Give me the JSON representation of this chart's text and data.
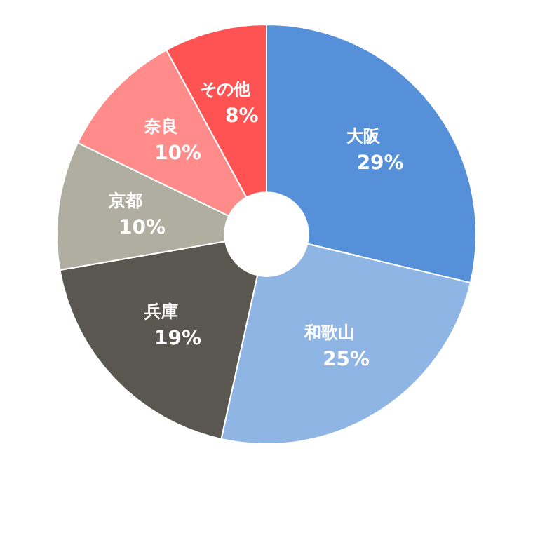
{
  "chart_data": {
    "type": "donut",
    "categories": [
      "大阪",
      "和歌山",
      "兵庫",
      "京都",
      "奈良",
      "その他"
    ],
    "values": [
      29,
      25,
      19,
      10,
      10,
      8
    ],
    "value_labels": [
      "29%",
      "25%",
      "19%",
      "10%",
      "10%",
      "8%"
    ],
    "colors": [
      "#5590d8",
      "#8fb5e4",
      "#5a5650",
      "#b0aea0",
      "#ff8b8b",
      "#ff5252"
    ],
    "legend": false
  }
}
